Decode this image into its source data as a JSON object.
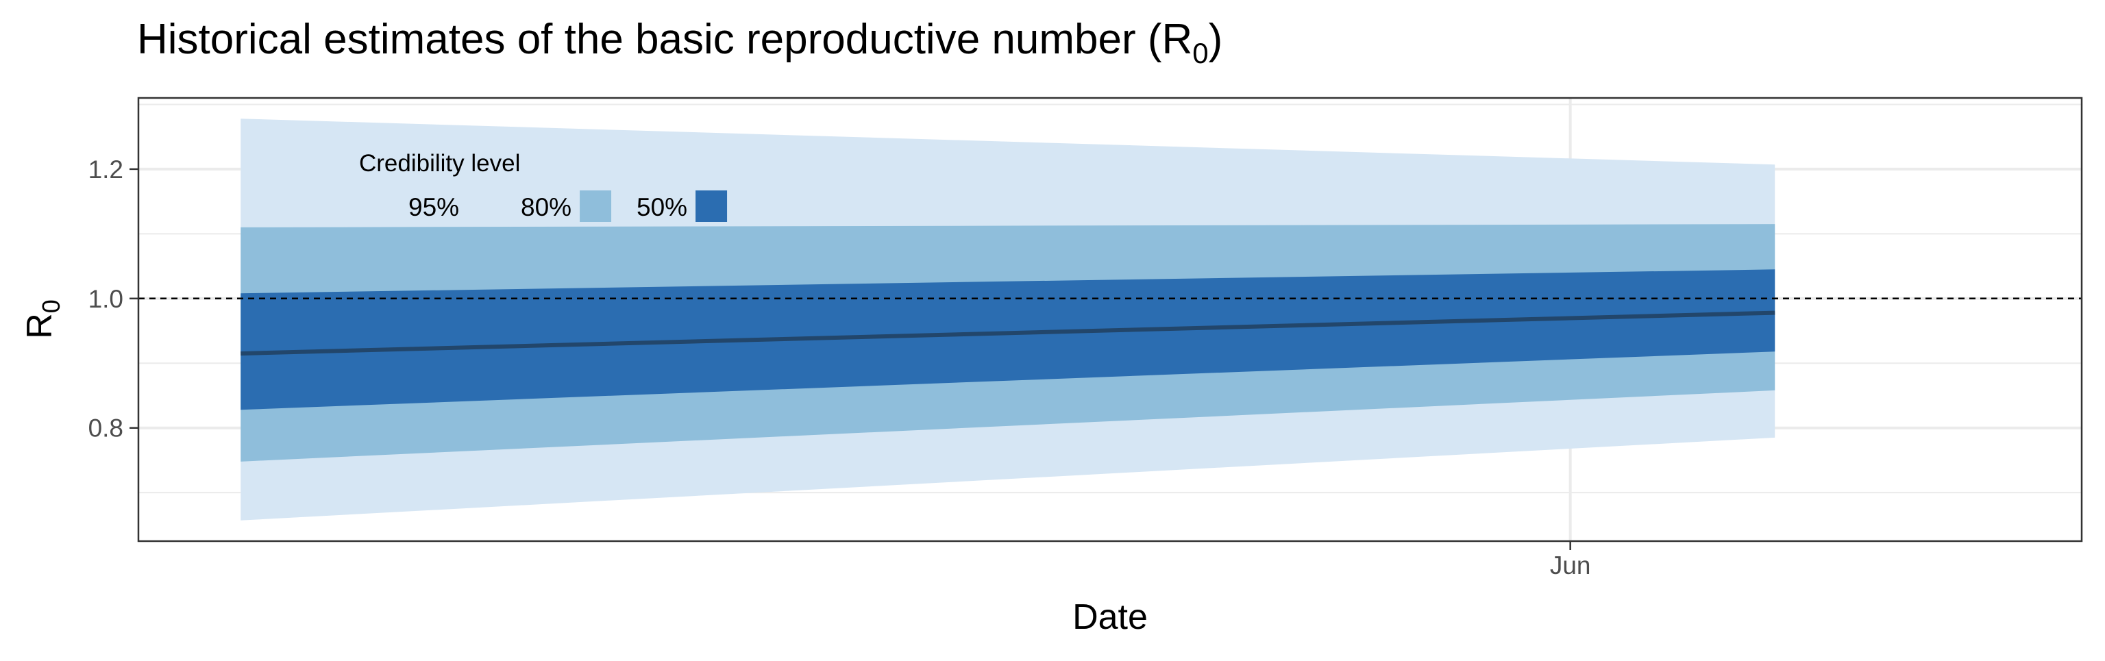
{
  "chart_data": {
    "type": "area",
    "title": {
      "main": "Historical estimates of the basic reproductive number (R",
      "sub": "0",
      "end": ")"
    },
    "xlabel": "Date",
    "ylabel": {
      "main": "R",
      "sub": "0"
    },
    "x": [
      "2020-05-06",
      "2020-06-05"
    ],
    "x_range": [
      "2020-05-04",
      "2020-06-11"
    ],
    "x_ticks": [
      {
        "date": "2020-06-01",
        "label": "Jun"
      }
    ],
    "ylim": [
      0.625,
      1.31
    ],
    "y_ticks": [
      {
        "value": 0.8,
        "label": "0.8"
      },
      {
        "value": 1.0,
        "label": "1.0"
      },
      {
        "value": 1.2,
        "label": "1.2"
      }
    ],
    "y_minor_ticks": [
      0.7,
      0.9,
      1.1,
      1.3
    ],
    "grid": true,
    "reference_line": {
      "value": 1.0,
      "style": "dashed"
    },
    "median": {
      "values": [
        0.915,
        0.978
      ],
      "color": "#22466b"
    },
    "bands": [
      {
        "level": "95%",
        "lower": [
          0.657,
          0.785
        ],
        "upper": [
          1.278,
          1.207
        ],
        "color": "#d6e6f4"
      },
      {
        "level": "80%",
        "lower": [
          0.748,
          0.858
        ],
        "upper": [
          1.11,
          1.115
        ],
        "color": "#8fbedb"
      },
      {
        "level": "50%",
        "lower": [
          0.828,
          0.918
        ],
        "upper": [
          1.008,
          1.045
        ],
        "color": "#2b6db1"
      }
    ],
    "legend": {
      "title": "Credibility level",
      "placement": "top-left",
      "items": [
        {
          "label": "95%",
          "color": "#d6e6f4"
        },
        {
          "label": "80%",
          "color": "#8fbedb"
        },
        {
          "label": "50%",
          "color": "#2b6db1"
        }
      ]
    }
  }
}
